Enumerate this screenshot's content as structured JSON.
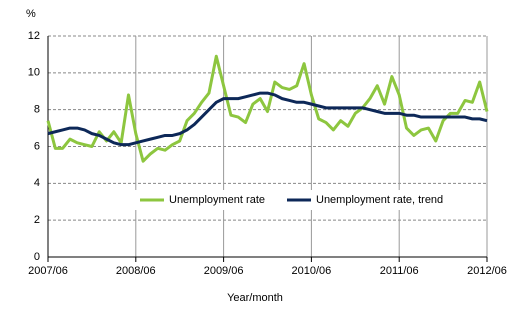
{
  "chart_data": {
    "type": "line",
    "y_label": "%",
    "x_label": "Year/month",
    "categories": [
      "2007/06",
      null,
      null,
      null,
      null,
      null,
      null,
      null,
      null,
      null,
      null,
      null,
      "2008/06",
      null,
      null,
      null,
      null,
      null,
      null,
      null,
      null,
      null,
      null,
      null,
      "2009/06",
      null,
      null,
      null,
      null,
      null,
      null,
      null,
      null,
      null,
      null,
      null,
      "2010/06",
      null,
      null,
      null,
      null,
      null,
      null,
      null,
      null,
      null,
      null,
      null,
      "2011/06",
      null,
      null,
      null,
      null,
      null,
      null,
      null,
      null,
      null,
      null,
      null,
      "2012/06"
    ],
    "series": [
      {
        "name": "Unemployment rate",
        "color": "#8dc63f",
        "values": [
          7.4,
          5.9,
          5.9,
          6.4,
          6.2,
          6.1,
          6.0,
          6.8,
          6.3,
          6.8,
          6.2,
          8.8,
          6.7,
          5.2,
          5.6,
          5.9,
          5.8,
          6.1,
          6.3,
          7.4,
          7.8,
          8.4,
          8.9,
          10.9,
          9.3,
          7.7,
          7.6,
          7.3,
          8.3,
          8.6,
          7.9,
          9.5,
          9.2,
          9.1,
          9.3,
          10.5,
          8.8,
          7.5,
          7.3,
          6.9,
          7.4,
          7.1,
          7.8,
          8.1,
          8.6,
          9.3,
          8.3,
          9.8,
          8.8,
          7.0,
          6.6,
          6.9,
          7.0,
          6.3,
          7.4,
          7.8,
          7.8,
          8.5,
          8.4,
          9.5,
          7.9
        ]
      },
      {
        "name": "Unemployment rate, trend",
        "color": "#0d2858",
        "values": [
          6.7,
          6.8,
          6.9,
          7.0,
          7.0,
          6.9,
          6.7,
          6.6,
          6.4,
          6.2,
          6.1,
          6.1,
          6.2,
          6.3,
          6.4,
          6.5,
          6.6,
          6.6,
          6.7,
          6.9,
          7.2,
          7.6,
          8.0,
          8.4,
          8.6,
          8.6,
          8.6,
          8.7,
          8.8,
          8.9,
          8.9,
          8.8,
          8.6,
          8.5,
          8.4,
          8.4,
          8.3,
          8.2,
          8.1,
          8.1,
          8.1,
          8.1,
          8.1,
          8.1,
          8.0,
          7.9,
          7.8,
          7.8,
          7.8,
          7.7,
          7.7,
          7.6,
          7.6,
          7.6,
          7.6,
          7.6,
          7.6,
          7.6,
          7.5,
          7.5,
          7.4
        ]
      }
    ],
    "ylim": [
      0,
      12
    ],
    "yticks": [
      0,
      2,
      4,
      6,
      8,
      10,
      12
    ],
    "grid": true
  }
}
